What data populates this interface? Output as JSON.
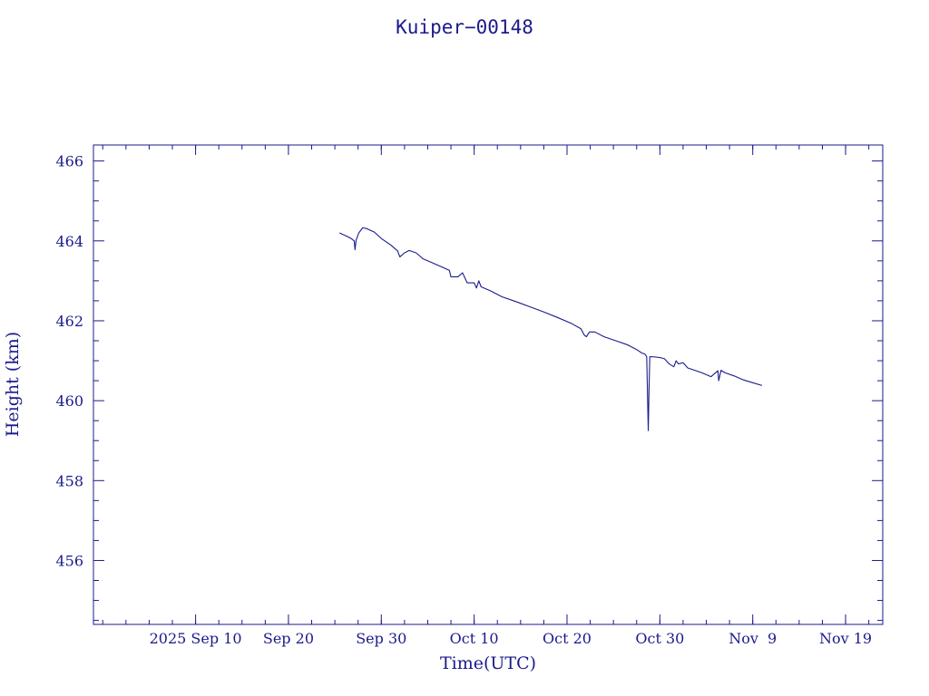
{
  "chart_data": {
    "type": "line",
    "title": "Kuiper−00148",
    "xlabel": "Time(UTC)",
    "ylabel": "Height (km)",
    "x_range": [
      "2025-08-30",
      "2025-11-23"
    ],
    "ylim": [
      454.4,
      466.4
    ],
    "x_ticks": [
      {
        "label": "2025 Sep 10",
        "date": "2025-09-10"
      },
      {
        "label": "Sep 20",
        "date": "2025-09-20"
      },
      {
        "label": "Sep 30",
        "date": "2025-09-30"
      },
      {
        "label": "Oct 10",
        "date": "2025-10-10"
      },
      {
        "label": "Oct 20",
        "date": "2025-10-20"
      },
      {
        "label": "Oct 30",
        "date": "2025-10-30"
      },
      {
        "label": "Nov  9",
        "date": "2025-11-09"
      },
      {
        "label": "Nov 19",
        "date": "2025-11-19"
      }
    ],
    "y_ticks": [
      456,
      458,
      460,
      462,
      464,
      466
    ],
    "grid": false,
    "color": "#1a1a8c",
    "series": [
      {
        "points": [
          [
            "2025-09-25 12:00",
            464.2
          ],
          [
            "2025-09-26 06:00",
            464.12
          ],
          [
            "2025-09-26 18:00",
            464.06
          ],
          [
            "2025-09-27 02:00",
            464.0
          ],
          [
            "2025-09-27 04:00",
            463.78
          ],
          [
            "2025-09-27 07:00",
            464.02
          ],
          [
            "2025-09-27 14:00",
            464.2
          ],
          [
            "2025-09-28 00:00",
            464.33
          ],
          [
            "2025-09-28 12:00",
            464.3
          ],
          [
            "2025-09-29 06:00",
            464.22
          ],
          [
            "2025-09-30 00:00",
            464.06
          ],
          [
            "2025-10-01 00:00",
            463.9
          ],
          [
            "2025-10-01 18:00",
            463.75
          ],
          [
            "2025-10-02 00:00",
            463.6
          ],
          [
            "2025-10-02 12:00",
            463.7
          ],
          [
            "2025-10-03 00:00",
            463.76
          ],
          [
            "2025-10-03 18:00",
            463.7
          ],
          [
            "2025-10-04 12:00",
            463.55
          ],
          [
            "2025-10-05 12:00",
            463.45
          ],
          [
            "2025-10-06 12:00",
            463.35
          ],
          [
            "2025-10-07 08:00",
            463.26
          ],
          [
            "2025-10-07 12:00",
            463.1
          ],
          [
            "2025-10-08 06:00",
            463.1
          ],
          [
            "2025-10-08 18:00",
            463.2
          ],
          [
            "2025-10-09 06:00",
            462.95
          ],
          [
            "2025-10-10 00:00",
            462.95
          ],
          [
            "2025-10-10 06:00",
            462.82
          ],
          [
            "2025-10-10 12:00",
            463.0
          ],
          [
            "2025-10-10 18:00",
            462.85
          ],
          [
            "2025-10-11 18:00",
            462.75
          ],
          [
            "2025-10-13 00:00",
            462.6
          ],
          [
            "2025-10-14 12:00",
            462.48
          ],
          [
            "2025-10-16 00:00",
            462.35
          ],
          [
            "2025-10-17 12:00",
            462.22
          ],
          [
            "2025-10-19 00:00",
            462.08
          ],
          [
            "2025-10-20 12:00",
            461.93
          ],
          [
            "2025-10-21 12:00",
            461.8
          ],
          [
            "2025-10-21 20:00",
            461.65
          ],
          [
            "2025-10-22 02:00",
            461.6
          ],
          [
            "2025-10-22 10:00",
            461.72
          ],
          [
            "2025-10-23 00:00",
            461.72
          ],
          [
            "2025-10-24 00:00",
            461.6
          ],
          [
            "2025-10-25 12:00",
            461.48
          ],
          [
            "2025-10-26 12:00",
            461.4
          ],
          [
            "2025-10-27 12:00",
            461.28
          ],
          [
            "2025-10-28 00:00",
            461.2
          ],
          [
            "2025-10-28 10:00",
            461.16
          ],
          [
            "2025-10-28 14:00",
            461.1
          ],
          [
            "2025-10-28 18:00",
            459.25
          ],
          [
            "2025-10-28 20:00",
            460.3
          ],
          [
            "2025-10-28 22:00",
            461.1
          ],
          [
            "2025-10-29 06:00",
            461.1
          ],
          [
            "2025-10-30 00:00",
            461.08
          ],
          [
            "2025-10-30 12:00",
            461.05
          ],
          [
            "2025-10-31 00:00",
            460.92
          ],
          [
            "2025-10-31 12:00",
            460.85
          ],
          [
            "2025-10-31 18:00",
            461.0
          ],
          [
            "2025-11-01 00:00",
            460.92
          ],
          [
            "2025-11-01 12:00",
            460.95
          ],
          [
            "2025-11-02 00:00",
            460.82
          ],
          [
            "2025-11-03 12:00",
            460.7
          ],
          [
            "2025-11-04 12:00",
            460.6
          ],
          [
            "2025-11-05 06:00",
            460.75
          ],
          [
            "2025-11-05 08:00",
            460.5
          ],
          [
            "2025-11-05 14:00",
            460.76
          ],
          [
            "2025-11-06 00:00",
            460.7
          ],
          [
            "2025-11-07 00:00",
            460.62
          ],
          [
            "2025-11-08 00:00",
            460.52
          ],
          [
            "2025-11-09 00:00",
            460.45
          ],
          [
            "2025-11-10 00:00",
            460.38
          ]
        ]
      }
    ]
  }
}
